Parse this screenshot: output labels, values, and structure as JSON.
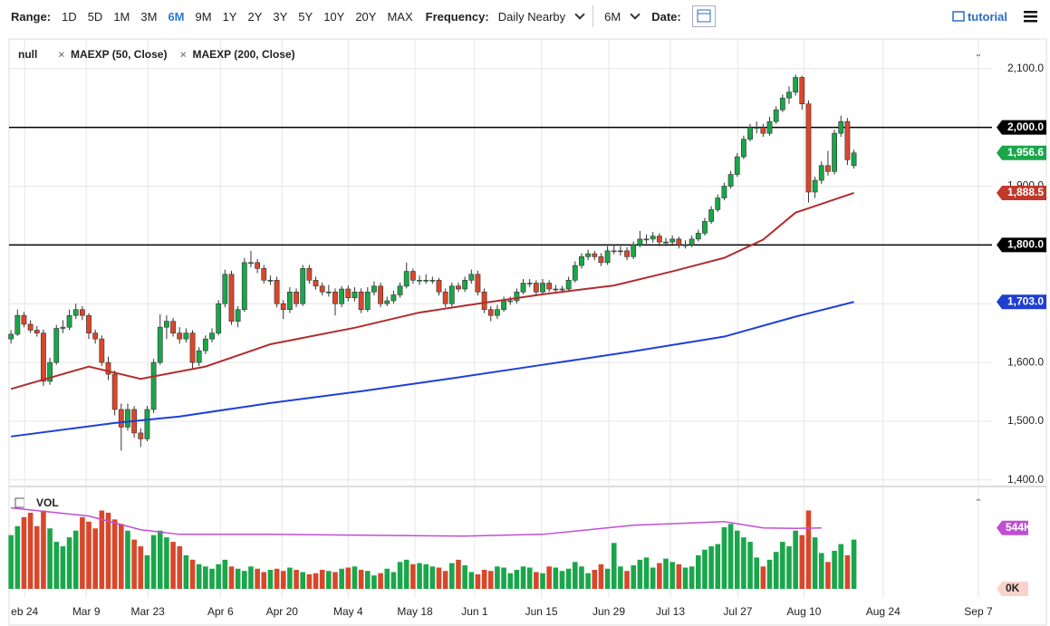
{
  "toolbar": {
    "range_label": "Range:",
    "ranges": [
      "1D",
      "5D",
      "1M",
      "3M",
      "6M",
      "9M",
      "1Y",
      "2Y",
      "3Y",
      "5Y",
      "10Y",
      "20Y",
      "MAX"
    ],
    "active_range": 4,
    "frequency_label": "Frequency:",
    "frequency": "Daily Nearby",
    "period": "6M",
    "date_label": "Date:",
    "tutorial": "tutorial"
  },
  "chart_data": {
    "type": "candlestick",
    "instrument": "null",
    "up_color": "#1aa64a",
    "down_color": "#d9472b",
    "grid": true,
    "xlim": [
      -0.3,
      151.3
    ],
    "ylim": [
      1392,
      2149
    ],
    "xticks": [
      {
        "value": 2.1,
        "label": "eb 24"
      },
      {
        "value": 11.6,
        "label": "Mar 9"
      },
      {
        "value": 21.1,
        "label": "Mar 23"
      },
      {
        "value": 32.3,
        "label": "Apr 6"
      },
      {
        "value": 41.8,
        "label": "Apr 20"
      },
      {
        "value": 52,
        "label": "May 4"
      },
      {
        "value": 62.3,
        "label": "May 18"
      },
      {
        "value": 71.5,
        "label": "Jun 1"
      },
      {
        "value": 81.8,
        "label": "Jun 15"
      },
      {
        "value": 92.2,
        "label": "Jun 29"
      },
      {
        "value": 101.7,
        "label": "Jul 13"
      },
      {
        "value": 112.1,
        "label": "Jul 27"
      },
      {
        "value": 122.3,
        "label": "Aug 10"
      },
      {
        "value": 134.5,
        "label": "Aug 24"
      },
      {
        "value": 149.2,
        "label": "Sep 7"
      }
    ],
    "yticks": [
      {
        "value": 1400,
        "label": "1,400.0"
      },
      {
        "value": 1500,
        "label": "1,500.0"
      },
      {
        "value": 1600,
        "label": "1,600.0"
      },
      {
        "value": 1700,
        "label": "1,700.0"
      },
      {
        "value": 1800,
        "label": "1,800.0"
      },
      {
        "value": 1900,
        "label": "1,900.0"
      },
      {
        "value": 2000,
        "label": "2,000.0"
      },
      {
        "value": 2100,
        "label": "2,100.0"
      }
    ],
    "hlines": [
      2000,
      1800
    ],
    "price_labels": [
      {
        "value": 2000,
        "label": "2,000.0",
        "color": "#000000"
      },
      {
        "value": 1956.6,
        "label": "1,956.6",
        "color": "#1aa64a"
      },
      {
        "value": 1888.5,
        "label": "1,888.5",
        "color": "#c0392b"
      },
      {
        "value": 1800,
        "label": "1,800.0",
        "color": "#000000"
      },
      {
        "value": 1703,
        "label": "1,703.0",
        "color": "#1f3fd1"
      }
    ],
    "candles": [
      [
        1640,
        1655,
        1632,
        1648
      ],
      [
        1648,
        1690,
        1645,
        1680
      ],
      [
        1680,
        1686,
        1660,
        1665
      ],
      [
        1665,
        1672,
        1650,
        1655
      ],
      [
        1655,
        1662,
        1644,
        1650
      ],
      [
        1650,
        1656,
        1560,
        1568
      ],
      [
        1568,
        1608,
        1562,
        1600
      ],
      [
        1600,
        1664,
        1596,
        1658
      ],
      [
        1658,
        1672,
        1650,
        1660
      ],
      [
        1660,
        1690,
        1655,
        1680
      ],
      [
        1680,
        1700,
        1674,
        1690
      ],
      [
        1690,
        1696,
        1672,
        1680
      ],
      [
        1680,
        1684,
        1640,
        1650
      ],
      [
        1650,
        1656,
        1632,
        1640
      ],
      [
        1640,
        1646,
        1594,
        1600
      ],
      [
        1600,
        1610,
        1570,
        1580
      ],
      [
        1580,
        1586,
        1510,
        1520
      ],
      [
        1520,
        1530,
        1450,
        1490
      ],
      [
        1490,
        1530,
        1484,
        1520
      ],
      [
        1520,
        1526,
        1472,
        1480
      ],
      [
        1480,
        1488,
        1456,
        1470
      ],
      [
        1470,
        1526,
        1466,
        1520
      ],
      [
        1520,
        1606,
        1514,
        1600
      ],
      [
        1600,
        1682,
        1596,
        1660
      ],
      [
        1660,
        1680,
        1640,
        1670
      ],
      [
        1670,
        1676,
        1644,
        1650
      ],
      [
        1650,
        1660,
        1632,
        1640
      ],
      [
        1640,
        1658,
        1634,
        1650
      ],
      [
        1650,
        1655,
        1590,
        1600
      ],
      [
        1600,
        1626,
        1594,
        1620
      ],
      [
        1620,
        1646,
        1614,
        1640
      ],
      [
        1640,
        1658,
        1634,
        1650
      ],
      [
        1650,
        1706,
        1646,
        1700
      ],
      [
        1700,
        1758,
        1694,
        1750
      ],
      [
        1750,
        1756,
        1664,
        1670
      ],
      [
        1670,
        1696,
        1660,
        1690
      ],
      [
        1690,
        1778,
        1686,
        1770
      ],
      [
        1770,
        1790,
        1762,
        1770
      ],
      [
        1770,
        1776,
        1752,
        1760
      ],
      [
        1760,
        1766,
        1734,
        1740
      ],
      [
        1740,
        1748,
        1732,
        1740
      ],
      [
        1740,
        1746,
        1694,
        1700
      ],
      [
        1700,
        1706,
        1674,
        1690
      ],
      [
        1690,
        1728,
        1684,
        1720
      ],
      [
        1720,
        1726,
        1694,
        1700
      ],
      [
        1700,
        1766,
        1696,
        1760
      ],
      [
        1760,
        1766,
        1734,
        1740
      ],
      [
        1740,
        1746,
        1724,
        1730
      ],
      [
        1730,
        1736,
        1714,
        1720
      ],
      [
        1720,
        1732,
        1712,
        1720
      ],
      [
        1720,
        1726,
        1680,
        1700
      ],
      [
        1700,
        1730,
        1694,
        1725
      ],
      [
        1725,
        1731,
        1704,
        1710
      ],
      [
        1710,
        1728,
        1704,
        1720
      ],
      [
        1720,
        1726,
        1684,
        1690
      ],
      [
        1690,
        1728,
        1686,
        1720
      ],
      [
        1720,
        1738,
        1714,
        1730
      ],
      [
        1730,
        1736,
        1694,
        1700
      ],
      [
        1700,
        1712,
        1696,
        1705
      ],
      [
        1705,
        1722,
        1700,
        1715
      ],
      [
        1715,
        1736,
        1710,
        1730
      ],
      [
        1730,
        1770,
        1726,
        1755
      ],
      [
        1755,
        1760,
        1734,
        1740
      ],
      [
        1740,
        1748,
        1732,
        1740
      ],
      [
        1740,
        1750,
        1734,
        1740
      ],
      [
        1740,
        1746,
        1734,
        1740
      ],
      [
        1740,
        1744,
        1714,
        1720
      ],
      [
        1720,
        1726,
        1694,
        1700
      ],
      [
        1700,
        1736,
        1694,
        1730
      ],
      [
        1730,
        1736,
        1720,
        1725
      ],
      [
        1725,
        1746,
        1720,
        1740
      ],
      [
        1740,
        1758,
        1734,
        1750
      ],
      [
        1750,
        1756,
        1714,
        1720
      ],
      [
        1720,
        1726,
        1684,
        1690
      ],
      [
        1690,
        1696,
        1670,
        1680
      ],
      [
        1680,
        1698,
        1674,
        1690
      ],
      [
        1690,
        1712,
        1686,
        1705
      ],
      [
        1705,
        1712,
        1698,
        1705
      ],
      [
        1705,
        1726,
        1700,
        1720
      ],
      [
        1720,
        1742,
        1716,
        1735
      ],
      [
        1735,
        1742,
        1728,
        1735
      ],
      [
        1735,
        1740,
        1714,
        1720
      ],
      [
        1720,
        1742,
        1716,
        1735
      ],
      [
        1735,
        1740,
        1720,
        1725
      ],
      [
        1725,
        1732,
        1718,
        1725
      ],
      [
        1725,
        1730,
        1718,
        1725
      ],
      [
        1725,
        1746,
        1720,
        1740
      ],
      [
        1740,
        1772,
        1736,
        1765
      ],
      [
        1765,
        1786,
        1760,
        1780
      ],
      [
        1780,
        1792,
        1774,
        1785
      ],
      [
        1785,
        1790,
        1774,
        1780
      ],
      [
        1780,
        1786,
        1764,
        1770
      ],
      [
        1770,
        1798,
        1766,
        1790
      ],
      [
        1790,
        1800,
        1784,
        1790
      ],
      [
        1790,
        1798,
        1782,
        1790
      ],
      [
        1790,
        1796,
        1774,
        1780
      ],
      [
        1780,
        1806,
        1776,
        1800
      ],
      [
        1800,
        1824,
        1796,
        1810
      ],
      [
        1810,
        1818,
        1802,
        1810
      ],
      [
        1810,
        1822,
        1804,
        1815
      ],
      [
        1815,
        1820,
        1798,
        1805
      ],
      [
        1805,
        1812,
        1798,
        1805
      ],
      [
        1805,
        1816,
        1800,
        1810
      ],
      [
        1810,
        1814,
        1794,
        1800
      ],
      [
        1800,
        1808,
        1794,
        1800
      ],
      [
        1800,
        1816,
        1796,
        1810
      ],
      [
        1810,
        1826,
        1806,
        1820
      ],
      [
        1820,
        1846,
        1816,
        1840
      ],
      [
        1840,
        1866,
        1836,
        1860
      ],
      [
        1860,
        1886,
        1856,
        1880
      ],
      [
        1880,
        1906,
        1876,
        1900
      ],
      [
        1900,
        1926,
        1896,
        1920
      ],
      [
        1920,
        1956,
        1916,
        1950
      ],
      [
        1950,
        1986,
        1946,
        1980
      ],
      [
        1980,
        2006,
        1976,
        2000
      ],
      [
        2000,
        2010,
        1990,
        2000
      ],
      [
        2000,
        2006,
        1984,
        1990
      ],
      [
        1990,
        2018,
        1986,
        2010
      ],
      [
        2010,
        2036,
        2006,
        2030
      ],
      [
        2030,
        2056,
        2026,
        2050
      ],
      [
        2050,
        2070,
        2040,
        2060
      ],
      [
        2060,
        2090,
        2054,
        2085
      ],
      [
        2085,
        2088,
        2030,
        2040
      ],
      [
        2040,
        2046,
        1872,
        1890
      ],
      [
        1890,
        1916,
        1880,
        1910
      ],
      [
        1910,
        1942,
        1904,
        1935
      ],
      [
        1935,
        1960,
        1918,
        1925
      ],
      [
        1925,
        1996,
        1920,
        1990
      ],
      [
        1990,
        2020,
        1984,
        2010
      ],
      [
        2010,
        2016,
        1936,
        1945
      ],
      [
        1935,
        1962,
        1930,
        1956.6
      ]
    ],
    "series": [
      {
        "name": "MAEXP (50, Close)",
        "color": "#b22d2d",
        "x": [
          0,
          12,
          20,
          30,
          40,
          53,
          63,
          72,
          82,
          93,
          102,
          110,
          116,
          121,
          130
        ],
        "values": [
          1555,
          1593,
          1572,
          1593,
          1631,
          1659,
          1685,
          1700,
          1716,
          1731,
          1755,
          1778,
          1809,
          1855,
          1888.5
        ]
      },
      {
        "name": "MAEXP (200, Close)",
        "color": "#1e3fd8",
        "x": [
          0,
          16,
          26,
          40,
          54,
          68,
          82,
          96,
          110,
          121,
          130
        ],
        "values": [
          1474,
          1497,
          1508,
          1531,
          1551,
          1573,
          1596,
          1619,
          1644,
          1678,
          1703
        ]
      }
    ],
    "volume": {
      "label": "VOL",
      "ylim": [
        0,
        890
      ],
      "values": [
        480,
        560,
        640,
        680,
        560,
        700,
        540,
        420,
        380,
        460,
        520,
        640,
        600,
        540,
        700,
        680,
        620,
        580,
        520,
        440,
        380,
        300,
        480,
        520,
        460,
        420,
        380,
        300,
        260,
        220,
        200,
        180,
        220,
        260,
        200,
        180,
        160,
        200,
        180,
        150,
        170,
        180,
        160,
        190,
        170,
        150,
        130,
        140,
        170,
        160,
        150,
        180,
        190,
        200,
        170,
        160,
        120,
        140,
        180,
        150,
        240,
        260,
        220,
        230,
        220,
        200,
        190,
        160,
        230,
        260,
        210,
        150,
        130,
        170,
        160,
        200,
        190,
        140,
        170,
        200,
        190,
        150,
        140,
        200,
        190,
        160,
        180,
        240,
        200,
        140,
        170,
        220,
        180,
        410,
        200,
        160,
        210,
        260,
        280,
        190,
        230,
        270,
        240,
        220,
        190,
        200,
        300,
        350,
        380,
        400,
        550,
        580,
        520,
        460,
        420,
        280,
        200,
        260,
        330,
        420,
        380,
        520,
        480,
        700,
        460,
        320,
        240,
        340,
        400,
        300,
        440
      ],
      "ma": {
        "color": "#c04fd4",
        "x": [
          0,
          12,
          20,
          26,
          40,
          70,
          82,
          96,
          110,
          116,
          121,
          125
        ],
        "values": [
          723,
          650,
          528,
          487,
          487,
          471,
          487,
          568,
          601,
          544,
          540,
          544
        ]
      },
      "tags": [
        {
          "value": 544,
          "label": "544K",
          "color": "#c04fd4",
          "text_color": "#ffffff"
        },
        {
          "value": 0,
          "label": "0K",
          "color": "#f8d3cc",
          "text_color": "#222222"
        }
      ]
    }
  }
}
